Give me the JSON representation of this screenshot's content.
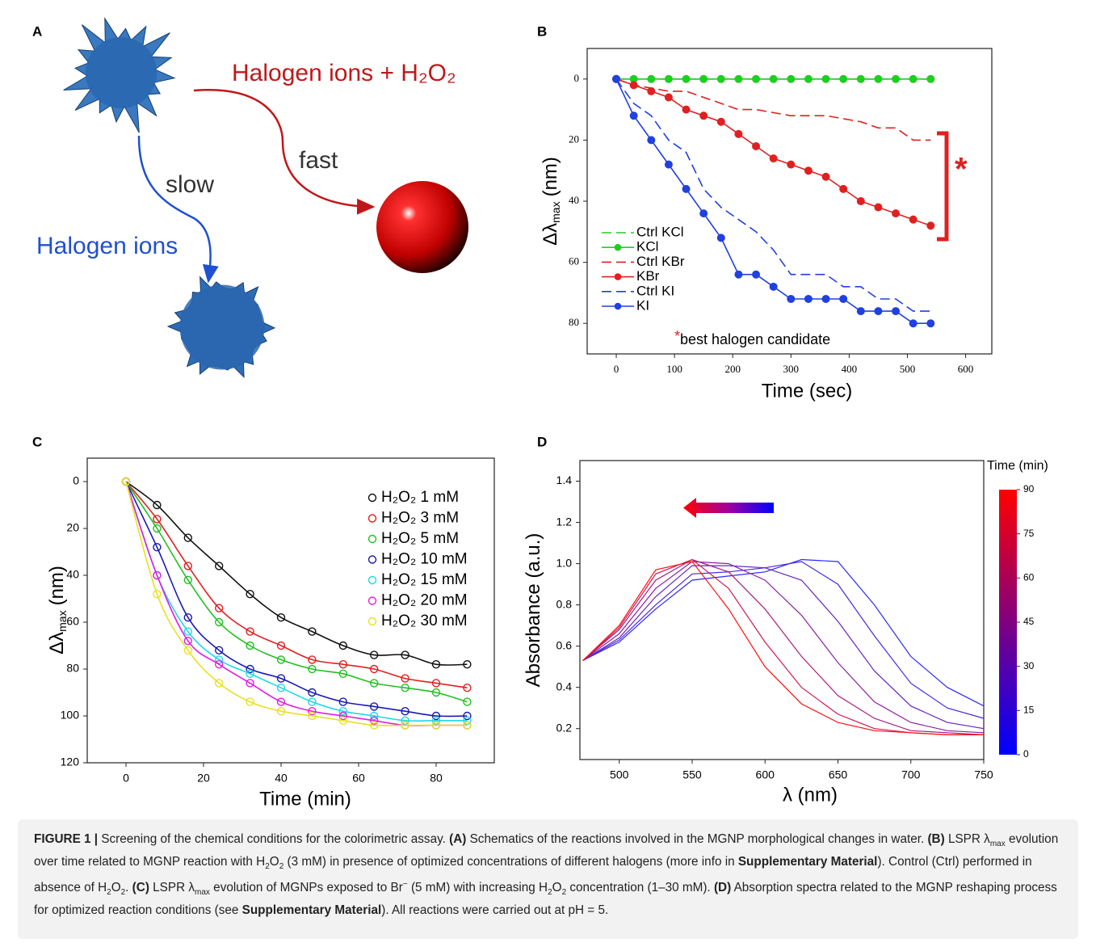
{
  "panel_labels": [
    "A",
    "B",
    "C",
    "D"
  ],
  "diagram": {
    "fast_reagent": "Halogen ions + H₂O₂",
    "fast": "fast",
    "slow": "slow",
    "slow_reagent": "Halogen ions"
  },
  "chart_data": [
    {
      "type": "line",
      "xlabel": "Time (sec)",
      "ylabel": {
        "text": "Δλ",
        "sub": "max",
        "unit": "(nm)"
      },
      "x": [
        0,
        30,
        60,
        90,
        120,
        150,
        180,
        210,
        240,
        270,
        300,
        330,
        360,
        390,
        420,
        450,
        480,
        510,
        540
      ],
      "xlim": [
        -50,
        645
      ],
      "xticks": [
        0,
        100,
        200,
        300,
        400,
        500,
        600
      ],
      "ylim": [
        -10,
        90
      ],
      "yticks": [
        0,
        20,
        40,
        60,
        80
      ],
      "y_inverted": true,
      "series": [
        {
          "name": "Ctrl KCl",
          "color": "#22cc22",
          "dash": true,
          "marker": false,
          "values": [
            0,
            0,
            0,
            0,
            0,
            0,
            0,
            0,
            0,
            0,
            0,
            0,
            0,
            0,
            0,
            0,
            0,
            0,
            0
          ]
        },
        {
          "name": "KCl",
          "color": "#22cc22",
          "dash": false,
          "marker": true,
          "values": [
            0,
            0,
            0,
            0,
            0,
            0,
            0,
            0,
            0,
            0,
            0,
            0,
            0,
            0,
            0,
            0,
            0,
            0,
            0
          ]
        },
        {
          "name": "Ctrl KBr",
          "color": "#e02020",
          "dash": true,
          "marker": false,
          "values": [
            0,
            2,
            3,
            4,
            4,
            6,
            8,
            10,
            10,
            11,
            12,
            12,
            12,
            13,
            14,
            16,
            16,
            20,
            20
          ]
        },
        {
          "name": "KBr",
          "color": "#e02020",
          "dash": false,
          "marker": true,
          "values": [
            0,
            2,
            4,
            6,
            10,
            12,
            14,
            18,
            22,
            26,
            28,
            30,
            32,
            36,
            40,
            42,
            44,
            46,
            48
          ]
        },
        {
          "name": "Ctrl KI",
          "color": "#2040e0",
          "dash": true,
          "marker": false,
          "values": [
            0,
            8,
            12,
            20,
            24,
            36,
            42,
            46,
            50,
            56,
            64,
            64,
            64,
            68,
            68,
            72,
            72,
            76,
            76
          ]
        },
        {
          "name": "KI",
          "color": "#2040e0",
          "dash": false,
          "marker": true,
          "values": [
            0,
            12,
            20,
            28,
            36,
            44,
            52,
            64,
            64,
            68,
            72,
            72,
            72,
            72,
            76,
            76,
            76,
            80,
            80
          ]
        }
      ],
      "annotation": {
        "mark": "*",
        "text": "best halogen candidate"
      },
      "significance": "*"
    },
    {
      "type": "scatter",
      "xlabel": "Time (min)",
      "ylabel": {
        "text": "Δλ",
        "sub": "max",
        "unit": "(nm)"
      },
      "x": [
        0,
        8,
        16,
        24,
        32,
        40,
        48,
        56,
        64,
        72,
        80,
        88
      ],
      "xlim": [
        -10,
        95
      ],
      "xticks": [
        0,
        20,
        40,
        60,
        80
      ],
      "ylim": [
        -10,
        120
      ],
      "yticks": [
        0,
        20,
        40,
        60,
        80,
        100,
        120
      ],
      "y_inverted": true,
      "fit_line": true,
      "series": [
        {
          "name": "H₂O₂ 1 mM",
          "color": "#111111",
          "values": [
            0,
            10,
            24,
            36,
            48,
            58,
            64,
            70,
            74,
            74,
            78,
            78
          ]
        },
        {
          "name": "H₂O₂ 3 mM",
          "color": "#e02020",
          "values": [
            0,
            16,
            36,
            54,
            64,
            70,
            76,
            78,
            80,
            84,
            86,
            88
          ]
        },
        {
          "name": "H₂O₂ 5 mM",
          "color": "#22c022",
          "values": [
            0,
            20,
            42,
            60,
            70,
            76,
            80,
            82,
            86,
            88,
            90,
            94
          ]
        },
        {
          "name": "H₂O₂ 10 mM",
          "color": "#1a1ab0",
          "values": [
            0,
            28,
            58,
            72,
            80,
            84,
            90,
            94,
            96,
            98,
            100,
            100
          ]
        },
        {
          "name": "H₂O₂ 15 mM",
          "color": "#20d8e8",
          "values": [
            0,
            40,
            64,
            76,
            82,
            88,
            94,
            98,
            100,
            102,
            102,
            102
          ]
        },
        {
          "name": "H₂O₂ 20 mM",
          "color": "#e020e0",
          "values": [
            0,
            40,
            68,
            78,
            86,
            94,
            98,
            100,
            102,
            104,
            104,
            104
          ]
        },
        {
          "name": "H₂O₂ 30 mM",
          "color": "#e8e020",
          "values": [
            0,
            48,
            72,
            86,
            94,
            98,
            100,
            102,
            104,
            104,
            104,
            104
          ]
        }
      ]
    },
    {
      "type": "line",
      "xlabel": "λ (nm)",
      "ylabel": {
        "text": "Absorbance (a.u.)"
      },
      "x": [
        475,
        500,
        525,
        550,
        575,
        600,
        625,
        650,
        675,
        700,
        725,
        750
      ],
      "xlim": [
        473,
        750
      ],
      "xticks": [
        500,
        550,
        600,
        650,
        700,
        750
      ],
      "ylim": [
        0.05,
        1.5
      ],
      "yticks": [
        0.2,
        0.4,
        0.6,
        0.8,
        {
          "value": 1.0,
          "label": "1.0"
        },
        1.2,
        1.4
      ],
      "series": [
        {
          "color": "#2a2aff",
          "values": [
            0.53,
            0.62,
            0.78,
            0.92,
            0.94,
            0.96,
            1.02,
            1.01,
            0.8,
            0.55,
            0.4,
            0.31
          ]
        },
        {
          "color": "#4a28e0",
          "values": [
            0.53,
            0.63,
            0.8,
            0.95,
            0.96,
            0.98,
            1.01,
            0.9,
            0.65,
            0.42,
            0.3,
            0.25
          ]
        },
        {
          "color": "#6a24c0",
          "values": [
            0.53,
            0.64,
            0.84,
            0.99,
            0.99,
            0.98,
            0.92,
            0.72,
            0.48,
            0.31,
            0.23,
            0.2
          ]
        },
        {
          "color": "#8a20a0",
          "values": [
            0.53,
            0.66,
            0.88,
            1.01,
            1.0,
            0.92,
            0.75,
            0.52,
            0.33,
            0.23,
            0.19,
            0.18
          ]
        },
        {
          "color": "#aa1c80",
          "values": [
            0.53,
            0.68,
            0.92,
            1.02,
            0.96,
            0.78,
            0.55,
            0.36,
            0.25,
            0.19,
            0.18,
            0.17
          ]
        },
        {
          "color": "#d01850",
          "values": [
            0.53,
            0.69,
            0.95,
            1.02,
            0.88,
            0.62,
            0.4,
            0.27,
            0.2,
            0.18,
            0.17,
            0.17
          ]
        },
        {
          "color": "#ff1010",
          "values": [
            0.53,
            0.7,
            0.97,
            1.01,
            0.78,
            0.5,
            0.32,
            0.23,
            0.19,
            0.18,
            0.17,
            0.17
          ]
        }
      ],
      "colorbar": {
        "title": "Time (min)",
        "clim": [
          0,
          90
        ],
        "ticks": [
          0,
          15,
          30,
          45,
          60,
          75,
          90
        ],
        "colors": [
          "#0000ff",
          "#800080",
          "#ff0000"
        ]
      }
    }
  ],
  "caption": [
    {
      "text": "FIGURE 1 | ",
      "style": "b"
    },
    {
      "text": "Screening of the chemical conditions for the colorimetric assay. ",
      "style": "n"
    },
    {
      "text": "(A)",
      "style": "b"
    },
    {
      "text": " Schematics of the reactions involved in the MGNP morphological changes in water. ",
      "style": "n"
    },
    {
      "text": "(B)",
      "style": "b"
    },
    {
      "text": " LSPR λ",
      "style": "n"
    },
    {
      "text": "max",
      "style": "sub"
    },
    {
      "text": " evolution over time related to MGNP reaction with H",
      "style": "n"
    },
    {
      "text": "2",
      "style": "sub"
    },
    {
      "text": "O",
      "style": "n"
    },
    {
      "text": "2",
      "style": "sub"
    },
    {
      "text": " (3 mM) in presence of optimized concentrations of different halogens (more info in ",
      "style": "n"
    },
    {
      "text": "Supplementary Material",
      "style": "b"
    },
    {
      "text": "). Control (Ctrl) performed in absence of H",
      "style": "n"
    },
    {
      "text": "2",
      "style": "sub"
    },
    {
      "text": "O",
      "style": "n"
    },
    {
      "text": "2",
      "style": "sub"
    },
    {
      "text": ". ",
      "style": "n"
    },
    {
      "text": "(C)",
      "style": "b"
    },
    {
      "text": " LSPR λ",
      "style": "n"
    },
    {
      "text": "max",
      "style": "sub"
    },
    {
      "text": " evolution of MGNPs exposed to Br",
      "style": "n"
    },
    {
      "text": "−",
      "style": "sup"
    },
    {
      "text": " (5 mM) with increasing H",
      "style": "n"
    },
    {
      "text": "2",
      "style": "sub"
    },
    {
      "text": "O",
      "style": "n"
    },
    {
      "text": "2",
      "style": "sub"
    },
    {
      "text": " concentration (1–30 mM). ",
      "style": "n"
    },
    {
      "text": "(D)",
      "style": "b"
    },
    {
      "text": " Absorption spectra related to the MGNP reshaping process for optimized reaction conditions (see ",
      "style": "n"
    },
    {
      "text": "Supplementary Material",
      "style": "b"
    },
    {
      "text": "). All reactions were carried out at pH = 5.",
      "style": "n"
    }
  ]
}
